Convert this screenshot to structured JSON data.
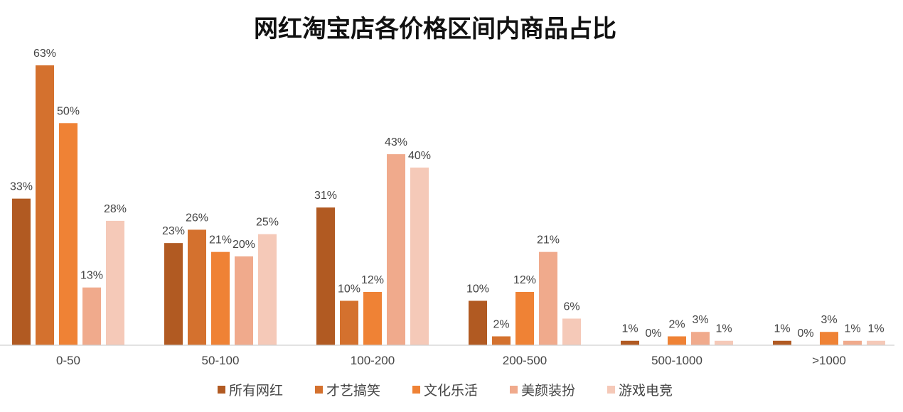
{
  "chart_data": {
    "type": "bar",
    "title": "网红淘宝店各价格区间内商品占比",
    "xlabel": "",
    "ylabel": "",
    "ylim": [
      0,
      0.63
    ],
    "categories": [
      "0-50",
      "50-100",
      "100-200",
      "200-500",
      "500-1000",
      ">1000"
    ],
    "series": [
      {
        "name": "所有网红",
        "color": "#B15A22",
        "values": [
          0.33,
          0.23,
          0.31,
          0.1,
          0.01,
          0.01
        ],
        "labels": [
          "33%",
          "23%",
          "31%",
          "10%",
          "1%",
          "1%"
        ]
      },
      {
        "name": "才艺搞笑",
        "color": "#D4712E",
        "values": [
          0.63,
          0.26,
          0.1,
          0.02,
          0.0,
          0.0
        ],
        "labels": [
          "63%",
          "26%",
          "10%",
          "2%",
          "0%",
          "0%"
        ]
      },
      {
        "name": "文化乐活",
        "color": "#EF8235",
        "values": [
          0.5,
          0.21,
          0.12,
          0.12,
          0.02,
          0.03
        ],
        "labels": [
          "50%",
          "21%",
          "12%",
          "12%",
          "2%",
          "3%"
        ]
      },
      {
        "name": "美颜装扮",
        "color": "#F0AA8C",
        "values": [
          0.13,
          0.2,
          0.43,
          0.21,
          0.03,
          0.01
        ],
        "labels": [
          "13%",
          "20%",
          "43%",
          "21%",
          "3%",
          "1%"
        ]
      },
      {
        "name": "游戏电竞",
        "color": "#F5C9B8",
        "values": [
          0.28,
          0.25,
          0.4,
          0.06,
          0.01,
          0.01
        ],
        "labels": [
          "28%",
          "25%",
          "40%",
          "6%",
          "1%",
          "1%"
        ]
      }
    ],
    "grid": false,
    "legend": "bottom"
  }
}
